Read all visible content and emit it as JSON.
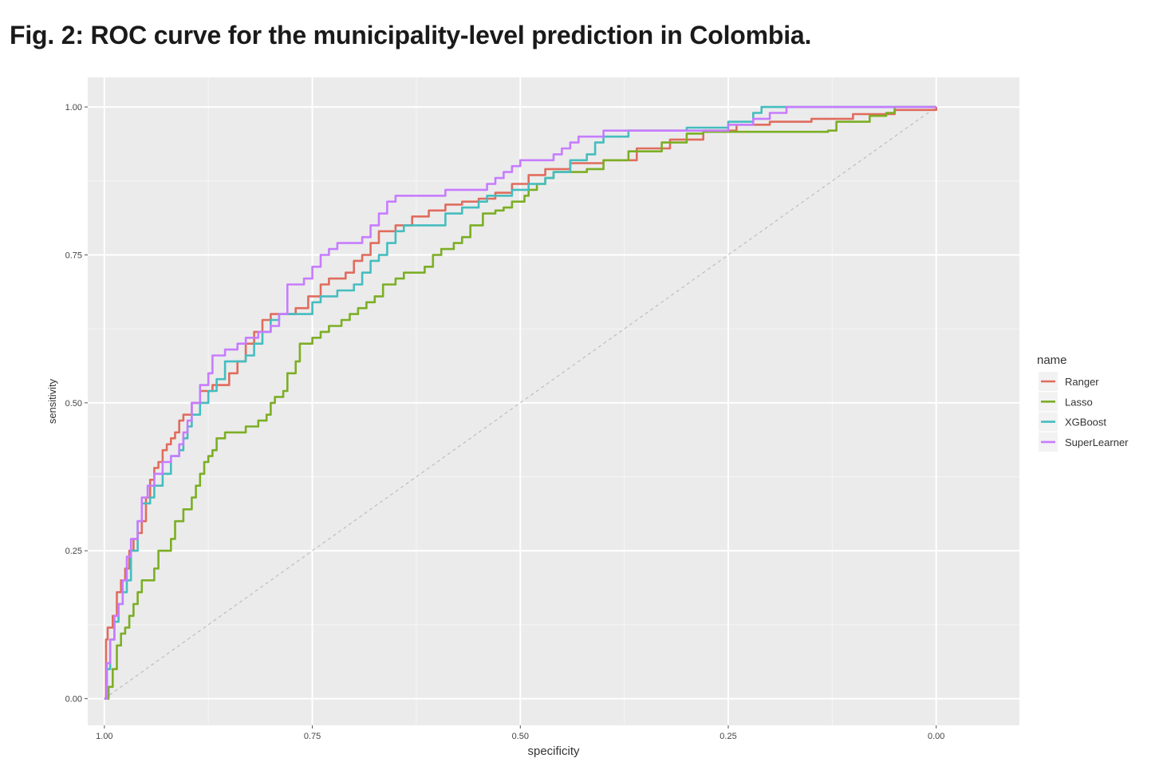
{
  "figure": {
    "title": "Fig. 2: ROC curve for the municipality-level prediction in Colombia."
  },
  "chart_data": {
    "type": "line",
    "title": "",
    "xlabel": "specificity",
    "ylabel": "sensitivity",
    "x_reversed": true,
    "xlim": [
      1.02,
      -0.1
    ],
    "ylim": [
      -0.045,
      1.05
    ],
    "x_ticks": [
      1.0,
      0.75,
      0.5,
      0.25,
      0.0
    ],
    "x_tick_labels": [
      "1.00",
      "0.75",
      "0.50",
      "0.25",
      "0.00"
    ],
    "y_ticks": [
      0.0,
      0.25,
      0.5,
      0.75,
      1.0
    ],
    "y_tick_labels": [
      "0.00",
      "0.25",
      "0.50",
      "0.75",
      "1.00"
    ],
    "grid": true,
    "legend_position": "right",
    "legend_title": "name",
    "reference_line": {
      "style": "dashed",
      "color": "#bfbfbf",
      "points": [
        [
          1.0,
          0.0
        ],
        [
          0.0,
          1.0
        ]
      ]
    },
    "series": [
      {
        "name": "Ranger",
        "color": "#e06c5d",
        "points": [
          [
            1.0,
            0.0
          ],
          [
            0.998,
            0.1
          ],
          [
            0.996,
            0.12
          ],
          [
            0.99,
            0.14
          ],
          [
            0.985,
            0.18
          ],
          [
            0.98,
            0.2
          ],
          [
            0.975,
            0.22
          ],
          [
            0.97,
            0.25
          ],
          [
            0.965,
            0.27
          ],
          [
            0.96,
            0.28
          ],
          [
            0.955,
            0.3
          ],
          [
            0.95,
            0.34
          ],
          [
            0.945,
            0.37
          ],
          [
            0.94,
            0.39
          ],
          [
            0.935,
            0.4
          ],
          [
            0.93,
            0.42
          ],
          [
            0.925,
            0.43
          ],
          [
            0.92,
            0.44
          ],
          [
            0.915,
            0.45
          ],
          [
            0.91,
            0.47
          ],
          [
            0.905,
            0.48
          ],
          [
            0.895,
            0.5
          ],
          [
            0.885,
            0.52
          ],
          [
            0.87,
            0.53
          ],
          [
            0.85,
            0.55
          ],
          [
            0.84,
            0.57
          ],
          [
            0.83,
            0.6
          ],
          [
            0.82,
            0.62
          ],
          [
            0.81,
            0.64
          ],
          [
            0.8,
            0.65
          ],
          [
            0.78,
            0.65
          ],
          [
            0.77,
            0.66
          ],
          [
            0.755,
            0.68
          ],
          [
            0.74,
            0.7
          ],
          [
            0.73,
            0.71
          ],
          [
            0.71,
            0.72
          ],
          [
            0.7,
            0.74
          ],
          [
            0.69,
            0.75
          ],
          [
            0.68,
            0.77
          ],
          [
            0.67,
            0.79
          ],
          [
            0.65,
            0.8
          ],
          [
            0.63,
            0.815
          ],
          [
            0.61,
            0.825
          ],
          [
            0.59,
            0.835
          ],
          [
            0.57,
            0.84
          ],
          [
            0.55,
            0.845
          ],
          [
            0.53,
            0.855
          ],
          [
            0.51,
            0.87
          ],
          [
            0.49,
            0.885
          ],
          [
            0.47,
            0.895
          ],
          [
            0.44,
            0.905
          ],
          [
            0.4,
            0.91
          ],
          [
            0.36,
            0.93
          ],
          [
            0.32,
            0.945
          ],
          [
            0.28,
            0.96
          ],
          [
            0.24,
            0.97
          ],
          [
            0.2,
            0.975
          ],
          [
            0.15,
            0.98
          ],
          [
            0.1,
            0.988
          ],
          [
            0.05,
            0.995
          ],
          [
            0.0,
            1.0
          ]
        ]
      },
      {
        "name": "Lasso",
        "color": "#7cae24",
        "points": [
          [
            1.0,
            0.0
          ],
          [
            0.995,
            0.02
          ],
          [
            0.99,
            0.05
          ],
          [
            0.985,
            0.09
          ],
          [
            0.98,
            0.11
          ],
          [
            0.975,
            0.12
          ],
          [
            0.97,
            0.14
          ],
          [
            0.965,
            0.16
          ],
          [
            0.96,
            0.18
          ],
          [
            0.955,
            0.2
          ],
          [
            0.945,
            0.2
          ],
          [
            0.94,
            0.22
          ],
          [
            0.935,
            0.25
          ],
          [
            0.925,
            0.25
          ],
          [
            0.92,
            0.27
          ],
          [
            0.915,
            0.3
          ],
          [
            0.905,
            0.32
          ],
          [
            0.895,
            0.34
          ],
          [
            0.89,
            0.36
          ],
          [
            0.885,
            0.38
          ],
          [
            0.88,
            0.4
          ],
          [
            0.875,
            0.41
          ],
          [
            0.87,
            0.42
          ],
          [
            0.865,
            0.44
          ],
          [
            0.855,
            0.45
          ],
          [
            0.84,
            0.45
          ],
          [
            0.83,
            0.46
          ],
          [
            0.815,
            0.47
          ],
          [
            0.805,
            0.48
          ],
          [
            0.8,
            0.5
          ],
          [
            0.795,
            0.51
          ],
          [
            0.785,
            0.52
          ],
          [
            0.78,
            0.55
          ],
          [
            0.77,
            0.57
          ],
          [
            0.765,
            0.6
          ],
          [
            0.75,
            0.61
          ],
          [
            0.74,
            0.62
          ],
          [
            0.73,
            0.63
          ],
          [
            0.715,
            0.64
          ],
          [
            0.705,
            0.65
          ],
          [
            0.695,
            0.66
          ],
          [
            0.685,
            0.67
          ],
          [
            0.675,
            0.68
          ],
          [
            0.665,
            0.7
          ],
          [
            0.65,
            0.71
          ],
          [
            0.64,
            0.72
          ],
          [
            0.615,
            0.73
          ],
          [
            0.605,
            0.75
          ],
          [
            0.595,
            0.76
          ],
          [
            0.58,
            0.77
          ],
          [
            0.57,
            0.78
          ],
          [
            0.56,
            0.8
          ],
          [
            0.545,
            0.82
          ],
          [
            0.53,
            0.825
          ],
          [
            0.52,
            0.83
          ],
          [
            0.51,
            0.84
          ],
          [
            0.495,
            0.85
          ],
          [
            0.49,
            0.86
          ],
          [
            0.48,
            0.87
          ],
          [
            0.47,
            0.88
          ],
          [
            0.46,
            0.89
          ],
          [
            0.42,
            0.895
          ],
          [
            0.4,
            0.91
          ],
          [
            0.37,
            0.925
          ],
          [
            0.33,
            0.94
          ],
          [
            0.3,
            0.955
          ],
          [
            0.28,
            0.958
          ],
          [
            0.13,
            0.96
          ],
          [
            0.12,
            0.975
          ],
          [
            0.08,
            0.985
          ],
          [
            0.06,
            0.99
          ],
          [
            0.05,
            1.0
          ],
          [
            0.0,
            1.0
          ]
        ]
      },
      {
        "name": "XGBoost",
        "color": "#45bdbf",
        "points": [
          [
            1.0,
            0.0
          ],
          [
            0.997,
            0.05
          ],
          [
            0.993,
            0.1
          ],
          [
            0.988,
            0.13
          ],
          [
            0.983,
            0.16
          ],
          [
            0.978,
            0.18
          ],
          [
            0.973,
            0.2
          ],
          [
            0.968,
            0.25
          ],
          [
            0.96,
            0.3
          ],
          [
            0.955,
            0.33
          ],
          [
            0.945,
            0.34
          ],
          [
            0.94,
            0.36
          ],
          [
            0.93,
            0.38
          ],
          [
            0.92,
            0.41
          ],
          [
            0.91,
            0.42
          ],
          [
            0.905,
            0.44
          ],
          [
            0.9,
            0.46
          ],
          [
            0.895,
            0.48
          ],
          [
            0.885,
            0.5
          ],
          [
            0.875,
            0.52
          ],
          [
            0.865,
            0.54
          ],
          [
            0.855,
            0.57
          ],
          [
            0.83,
            0.58
          ],
          [
            0.82,
            0.6
          ],
          [
            0.81,
            0.62
          ],
          [
            0.8,
            0.64
          ],
          [
            0.79,
            0.65
          ],
          [
            0.76,
            0.65
          ],
          [
            0.75,
            0.67
          ],
          [
            0.74,
            0.68
          ],
          [
            0.72,
            0.69
          ],
          [
            0.7,
            0.7
          ],
          [
            0.69,
            0.72
          ],
          [
            0.68,
            0.74
          ],
          [
            0.67,
            0.75
          ],
          [
            0.66,
            0.77
          ],
          [
            0.65,
            0.79
          ],
          [
            0.64,
            0.8
          ],
          [
            0.6,
            0.8
          ],
          [
            0.59,
            0.82
          ],
          [
            0.57,
            0.83
          ],
          [
            0.55,
            0.84
          ],
          [
            0.54,
            0.85
          ],
          [
            0.51,
            0.86
          ],
          [
            0.49,
            0.87
          ],
          [
            0.47,
            0.88
          ],
          [
            0.46,
            0.89
          ],
          [
            0.44,
            0.91
          ],
          [
            0.42,
            0.92
          ],
          [
            0.41,
            0.94
          ],
          [
            0.4,
            0.95
          ],
          [
            0.37,
            0.96
          ],
          [
            0.3,
            0.965
          ],
          [
            0.25,
            0.975
          ],
          [
            0.22,
            0.99
          ],
          [
            0.21,
            1.0
          ],
          [
            0.0,
            1.0
          ]
        ]
      },
      {
        "name": "SuperLearner",
        "color": "#c77cff",
        "points": [
          [
            1.0,
            0.0
          ],
          [
            0.997,
            0.06
          ],
          [
            0.993,
            0.1
          ],
          [
            0.988,
            0.14
          ],
          [
            0.983,
            0.16
          ],
          [
            0.978,
            0.2
          ],
          [
            0.973,
            0.24
          ],
          [
            0.968,
            0.27
          ],
          [
            0.96,
            0.3
          ],
          [
            0.955,
            0.34
          ],
          [
            0.948,
            0.36
          ],
          [
            0.94,
            0.38
          ],
          [
            0.93,
            0.4
          ],
          [
            0.92,
            0.41
          ],
          [
            0.91,
            0.43
          ],
          [
            0.905,
            0.45
          ],
          [
            0.9,
            0.47
          ],
          [
            0.895,
            0.5
          ],
          [
            0.885,
            0.53
          ],
          [
            0.875,
            0.55
          ],
          [
            0.87,
            0.58
          ],
          [
            0.855,
            0.59
          ],
          [
            0.84,
            0.6
          ],
          [
            0.83,
            0.61
          ],
          [
            0.815,
            0.62
          ],
          [
            0.8,
            0.63
          ],
          [
            0.79,
            0.65
          ],
          [
            0.78,
            0.7
          ],
          [
            0.76,
            0.71
          ],
          [
            0.75,
            0.73
          ],
          [
            0.74,
            0.75
          ],
          [
            0.73,
            0.76
          ],
          [
            0.72,
            0.77
          ],
          [
            0.69,
            0.78
          ],
          [
            0.68,
            0.8
          ],
          [
            0.67,
            0.82
          ],
          [
            0.66,
            0.84
          ],
          [
            0.65,
            0.85
          ],
          [
            0.6,
            0.85
          ],
          [
            0.59,
            0.86
          ],
          [
            0.54,
            0.87
          ],
          [
            0.53,
            0.88
          ],
          [
            0.52,
            0.89
          ],
          [
            0.51,
            0.9
          ],
          [
            0.5,
            0.91
          ],
          [
            0.46,
            0.92
          ],
          [
            0.45,
            0.93
          ],
          [
            0.44,
            0.94
          ],
          [
            0.43,
            0.95
          ],
          [
            0.4,
            0.96
          ],
          [
            0.25,
            0.97
          ],
          [
            0.22,
            0.98
          ],
          [
            0.2,
            0.99
          ],
          [
            0.18,
            1.0
          ],
          [
            0.0,
            1.0
          ]
        ]
      }
    ]
  }
}
